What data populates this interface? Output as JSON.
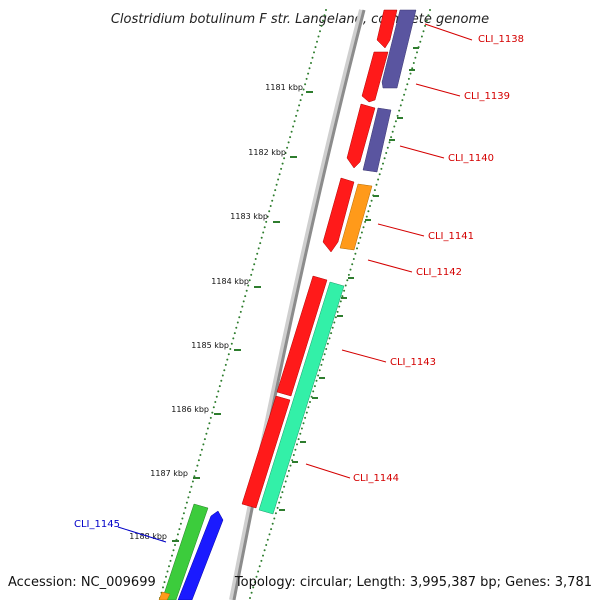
{
  "title": "Clostridium botulinum F str. Langeland, complete genome",
  "footer": {
    "accession": "Accession: NC_009699",
    "summary": "Topology: circular; Length: 3,995,387 bp; Genes: 3,781"
  },
  "colors": {
    "backbone": "#8c8c8c",
    "tick": "#2e7d2e",
    "red_gene": "#ff1a1a",
    "purple_gene": "#5a55a0",
    "orange_gene": "#ff9a1a",
    "teal_gene": "#33f0a8",
    "green_gene": "#3ccc3c",
    "blue_gene": "#1a1aff",
    "label_red": "#d40000",
    "label_blue": "#0000c8"
  },
  "kbp_labels": [
    "1181 kbp",
    "1182 kbp",
    "1183 kbp",
    "1184 kbp",
    "1185 kbp",
    "1186 kbp",
    "1187 kbp",
    "1188 kbp"
  ],
  "gene_labels": [
    {
      "text": "CLI_1138",
      "color": "red"
    },
    {
      "text": "CLI_1139",
      "color": "red"
    },
    {
      "text": "CLI_1140",
      "color": "red"
    },
    {
      "text": "CLI_1141",
      "color": "red"
    },
    {
      "text": "CLI_1142",
      "color": "red"
    },
    {
      "text": "CLI_1143",
      "color": "red"
    },
    {
      "text": "CLI_1144",
      "color": "red"
    },
    {
      "text": "CLI_1145",
      "color": "blue"
    }
  ]
}
